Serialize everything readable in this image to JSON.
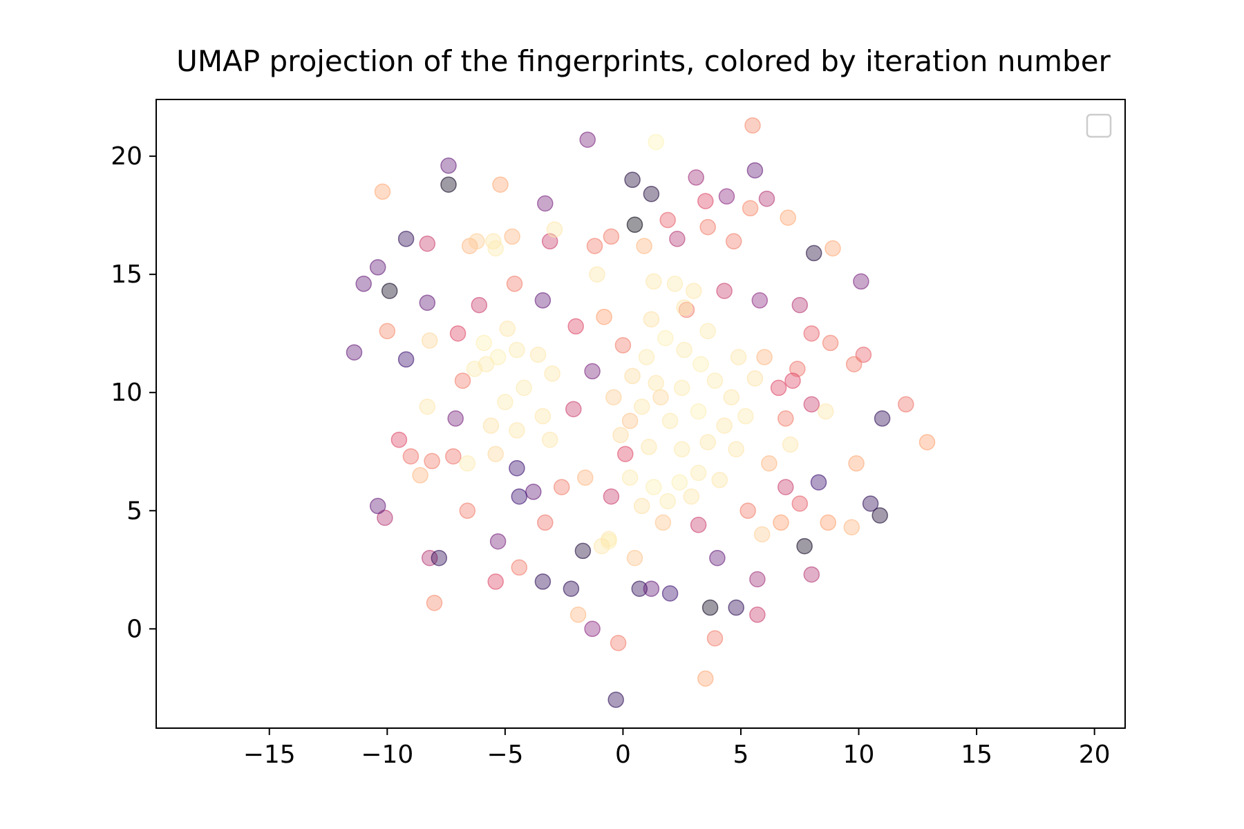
{
  "chart_data": {
    "type": "scatter",
    "title": "UMAP projection of the fingerprints, colored by iteration number",
    "xlabel": "",
    "ylabel": "",
    "xlim": [
      -19.8,
      21.3
    ],
    "ylim": [
      -4.2,
      22.4
    ],
    "xticks": [
      -15,
      -10,
      -5,
      0,
      5,
      10,
      15,
      20
    ],
    "xtick_labels": [
      "−15",
      "−10",
      "−5",
      "0",
      "5",
      "10",
      "15",
      "20"
    ],
    "yticks": [
      0,
      5,
      10,
      15,
      20
    ],
    "ytick_labels": [
      "0",
      "5",
      "10",
      "15",
      "20"
    ],
    "grid": false,
    "legend": {
      "placement": "top-right",
      "entries": []
    },
    "colormap": "magma",
    "colormap_stops": [
      "#000004",
      "#3b0f70",
      "#8c2981",
      "#de4968",
      "#fe9f6d",
      "#fcfdbf"
    ],
    "marker_alpha": 0.4,
    "points_sample": [
      {
        "x": -1.5,
        "y": 20.7,
        "c": 0.35
      },
      {
        "x": 1.4,
        "y": 20.6,
        "c": 0.98
      },
      {
        "x": 5.5,
        "y": 21.3,
        "c": 0.75
      },
      {
        "x": -7.4,
        "y": 19.6,
        "c": 0.3
      },
      {
        "x": -7.4,
        "y": 18.8,
        "c": 0.05
      },
      {
        "x": -10.2,
        "y": 18.5,
        "c": 0.82
      },
      {
        "x": -5.2,
        "y": 18.8,
        "c": 0.82
      },
      {
        "x": 0.4,
        "y": 19.0,
        "c": 0.1
      },
      {
        "x": 3.1,
        "y": 19.1,
        "c": 0.45
      },
      {
        "x": 5.6,
        "y": 19.4,
        "c": 0.3
      },
      {
        "x": 1.2,
        "y": 18.4,
        "c": 0.1
      },
      {
        "x": 6.1,
        "y": 18.2,
        "c": 0.5
      },
      {
        "x": 0.5,
        "y": 17.1,
        "c": 0.02
      },
      {
        "x": -9.2,
        "y": 16.5,
        "c": 0.15
      },
      {
        "x": -8.3,
        "y": 16.3,
        "c": 0.55
      },
      {
        "x": -10.4,
        "y": 15.3,
        "c": 0.3
      },
      {
        "x": -11.0,
        "y": 14.6,
        "c": 0.3
      },
      {
        "x": -9.9,
        "y": 14.3,
        "c": 0.05
      },
      {
        "x": -8.3,
        "y": 13.8,
        "c": 0.3
      },
      {
        "x": -11.4,
        "y": 11.7,
        "c": 0.3
      },
      {
        "x": 8.1,
        "y": 15.9,
        "c": 0.1
      },
      {
        "x": 8.9,
        "y": 16.1,
        "c": 0.82
      },
      {
        "x": 10.1,
        "y": 14.7,
        "c": 0.35
      },
      {
        "x": 7.0,
        "y": 17.4,
        "c": 0.82
      },
      {
        "x": 5.4,
        "y": 17.8,
        "c": 0.75
      },
      {
        "x": 3.5,
        "y": 18.1,
        "c": 0.6
      },
      {
        "x": 4.4,
        "y": 18.3,
        "c": 0.4
      },
      {
        "x": 10.2,
        "y": 11.6,
        "c": 0.65
      },
      {
        "x": 9.8,
        "y": 11.2,
        "c": 0.72
      },
      {
        "x": 11.0,
        "y": 8.9,
        "c": 0.15
      },
      {
        "x": 12.0,
        "y": 9.5,
        "c": 0.7
      },
      {
        "x": 12.9,
        "y": 7.9,
        "c": 0.8
      },
      {
        "x": 9.9,
        "y": 7.0,
        "c": 0.82
      },
      {
        "x": 10.9,
        "y": 4.8,
        "c": 0.08
      },
      {
        "x": 10.5,
        "y": 5.3,
        "c": 0.15
      },
      {
        "x": 9.7,
        "y": 4.3,
        "c": 0.85
      },
      {
        "x": -10.1,
        "y": 4.7,
        "c": 0.5
      },
      {
        "x": -10.4,
        "y": 5.2,
        "c": 0.3
      },
      {
        "x": -8.2,
        "y": 3.0,
        "c": 0.5
      },
      {
        "x": -7.8,
        "y": 3.0,
        "c": 0.15
      },
      {
        "x": -8.0,
        "y": 1.1,
        "c": 0.75
      },
      {
        "x": -5.4,
        "y": 2.0,
        "c": 0.6
      },
      {
        "x": -3.4,
        "y": 2.0,
        "c": 0.15
      },
      {
        "x": -2.2,
        "y": 1.7,
        "c": 0.15
      },
      {
        "x": -1.9,
        "y": 0.6,
        "c": 0.85
      },
      {
        "x": -1.3,
        "y": 0.0,
        "c": 0.4
      },
      {
        "x": -0.2,
        "y": -0.6,
        "c": 0.72
      },
      {
        "x": -0.3,
        "y": -3.0,
        "c": 0.15
      },
      {
        "x": 3.5,
        "y": -2.1,
        "c": 0.82
      },
      {
        "x": 3.9,
        "y": -0.4,
        "c": 0.72
      },
      {
        "x": 3.7,
        "y": 0.9,
        "c": 0.05
      },
      {
        "x": 4.8,
        "y": 0.9,
        "c": 0.15
      },
      {
        "x": 5.7,
        "y": 0.6,
        "c": 0.55
      },
      {
        "x": 5.7,
        "y": 2.1,
        "c": 0.45
      },
      {
        "x": 8.0,
        "y": 2.3,
        "c": 0.5
      },
      {
        "x": 2.0,
        "y": 1.5,
        "c": 0.2
      },
      {
        "x": 0.7,
        "y": 1.7,
        "c": 0.15
      },
      {
        "x": 1.2,
        "y": 1.7,
        "c": 0.3
      },
      {
        "x": 7.7,
        "y": 3.5,
        "c": 0.05
      },
      {
        "x": 8.7,
        "y": 4.5,
        "c": 0.8
      },
      {
        "x": 8.3,
        "y": 6.2,
        "c": 0.2
      },
      {
        "x": 7.5,
        "y": 5.3,
        "c": 0.65
      },
      {
        "x": -6.6,
        "y": 5.0,
        "c": 0.72
      },
      {
        "x": -5.3,
        "y": 3.7,
        "c": 0.35
      },
      {
        "x": -3.3,
        "y": 4.5,
        "c": 0.7
      },
      {
        "x": -4.4,
        "y": 2.6,
        "c": 0.72
      },
      {
        "x": -1.7,
        "y": 3.3,
        "c": 0.1
      },
      {
        "x": -0.6,
        "y": 3.8,
        "c": 0.95
      },
      {
        "x": 0.5,
        "y": 3.0,
        "c": 0.88
      },
      {
        "x": 5.9,
        "y": 4.0,
        "c": 0.9
      },
      {
        "x": -7.2,
        "y": 7.3,
        "c": 0.7
      },
      {
        "x": -8.1,
        "y": 7.1,
        "c": 0.72
      },
      {
        "x": -9.0,
        "y": 7.3,
        "c": 0.7
      },
      {
        "x": -8.6,
        "y": 6.5,
        "c": 0.85
      },
      {
        "x": -9.5,
        "y": 8.0,
        "c": 0.6
      },
      {
        "x": -8.3,
        "y": 9.4,
        "c": 0.95
      },
      {
        "x": -9.2,
        "y": 11.4,
        "c": 0.2
      },
      {
        "x": -10.0,
        "y": 12.6,
        "c": 0.75
      },
      {
        "x": -8.2,
        "y": 12.2,
        "c": 0.92
      },
      {
        "x": 8.0,
        "y": 12.5,
        "c": 0.65
      },
      {
        "x": 8.0,
        "y": 9.5,
        "c": 0.55
      },
      {
        "x": 8.6,
        "y": 9.2,
        "c": 0.95
      },
      {
        "x": 7.1,
        "y": 7.8,
        "c": 0.95
      },
      {
        "x": 6.0,
        "y": 11.5,
        "c": 0.85
      },
      {
        "x": -6.5,
        "y": 16.2,
        "c": 0.85
      },
      {
        "x": -5.5,
        "y": 16.4,
        "c": 0.95
      },
      {
        "x": -4.7,
        "y": 16.6,
        "c": 0.85
      },
      {
        "x": -3.1,
        "y": 16.4,
        "c": 0.55
      },
      {
        "x": -3.3,
        "y": 18.0,
        "c": 0.35
      },
      {
        "x": -1.2,
        "y": 16.2,
        "c": 0.72
      },
      {
        "x": -0.5,
        "y": 16.6,
        "c": 0.72
      },
      {
        "x": 0.9,
        "y": 16.2,
        "c": 0.85
      },
      {
        "x": 1.9,
        "y": 17.3,
        "c": 0.65
      },
      {
        "x": 2.3,
        "y": 16.5,
        "c": 0.5
      },
      {
        "x": 3.6,
        "y": 17.0,
        "c": 0.72
      },
      {
        "x": 4.7,
        "y": 16.4,
        "c": 0.72
      },
      {
        "x": -2.9,
        "y": 16.9,
        "c": 0.95
      },
      {
        "x": -1.1,
        "y": 15.0,
        "c": 0.95
      },
      {
        "x": 1.3,
        "y": 14.7,
        "c": 0.95
      },
      {
        "x": 5.8,
        "y": 13.9,
        "c": 0.4
      },
      {
        "x": 7.5,
        "y": 13.7,
        "c": 0.5
      },
      {
        "x": 8.8,
        "y": 12.1,
        "c": 0.72
      },
      {
        "x": -4.5,
        "y": 6.8,
        "c": 0.2
      },
      {
        "x": -3.8,
        "y": 5.8,
        "c": 0.3
      },
      {
        "x": -4.4,
        "y": 5.6,
        "c": 0.2
      },
      {
        "x": -2.6,
        "y": 6.0,
        "c": 0.72
      },
      {
        "x": -1.6,
        "y": 6.4,
        "c": 0.85
      },
      {
        "x": 0.1,
        "y": 7.4,
        "c": 0.6
      },
      {
        "x": -2.1,
        "y": 9.3,
        "c": 0.55
      },
      {
        "x": -1.3,
        "y": 10.9,
        "c": 0.35
      },
      {
        "x": -2.0,
        "y": 12.8,
        "c": 0.6
      },
      {
        "x": -0.8,
        "y": 13.2,
        "c": 0.8
      },
      {
        "x": -3.4,
        "y": 13.9,
        "c": 0.3
      },
      {
        "x": -4.6,
        "y": 14.6,
        "c": 0.72
      },
      {
        "x": -6.1,
        "y": 13.7,
        "c": 0.55
      },
      {
        "x": -7.0,
        "y": 12.5,
        "c": 0.6
      },
      {
        "x": -6.8,
        "y": 10.5,
        "c": 0.72
      },
      {
        "x": -7.1,
        "y": 8.9,
        "c": 0.35
      },
      {
        "x": 0.3,
        "y": 8.8,
        "c": 0.88
      },
      {
        "x": 1.6,
        "y": 9.8,
        "c": 0.92
      },
      {
        "x": 0.0,
        "y": 12.0,
        "c": 0.72
      },
      {
        "x": 2.7,
        "y": 13.5,
        "c": 0.72
      },
      {
        "x": 4.3,
        "y": 14.3,
        "c": 0.55
      },
      {
        "x": 6.6,
        "y": 10.2,
        "c": 0.6
      },
      {
        "x": 6.9,
        "y": 8.9,
        "c": 0.72
      },
      {
        "x": 6.2,
        "y": 7.0,
        "c": 0.85
      },
      {
        "x": 5.3,
        "y": 5.0,
        "c": 0.72
      },
      {
        "x": 3.2,
        "y": 4.4,
        "c": 0.55
      },
      {
        "x": 1.7,
        "y": 4.5,
        "c": 0.88
      },
      {
        "x": -0.5,
        "y": 5.6,
        "c": 0.55
      },
      {
        "x": 4.0,
        "y": 3.0,
        "c": 0.3
      },
      {
        "x": 6.7,
        "y": 4.5,
        "c": 0.8
      },
      {
        "x": 6.9,
        "y": 6.0,
        "c": 0.55
      },
      {
        "x": 7.4,
        "y": 11.0,
        "c": 0.7
      },
      {
        "x": 7.2,
        "y": 10.5,
        "c": 0.6
      },
      {
        "x": -5.8,
        "y": 11.2,
        "c": 0.96
      },
      {
        "x": -5.3,
        "y": 11.5,
        "c": 0.97
      },
      {
        "x": -6.3,
        "y": 11.0,
        "c": 0.96
      },
      {
        "x": -4.5,
        "y": 11.8,
        "c": 0.96
      },
      {
        "x": -3.6,
        "y": 11.6,
        "c": 0.95
      },
      {
        "x": -3.0,
        "y": 10.8,
        "c": 0.95
      },
      {
        "x": -4.2,
        "y": 10.2,
        "c": 0.96
      },
      {
        "x": -5.0,
        "y": 9.6,
        "c": 0.96
      },
      {
        "x": -3.4,
        "y": 9.0,
        "c": 0.95
      },
      {
        "x": -4.5,
        "y": 8.4,
        "c": 0.95
      },
      {
        "x": -5.6,
        "y": 8.6,
        "c": 0.94
      },
      {
        "x": -3.1,
        "y": 8.0,
        "c": 0.95
      },
      {
        "x": -5.9,
        "y": 12.1,
        "c": 0.97
      },
      {
        "x": -4.9,
        "y": 12.7,
        "c": 0.95
      },
      {
        "x": -5.4,
        "y": 7.4,
        "c": 0.92
      },
      {
        "x": 1.0,
        "y": 11.5,
        "c": 0.96
      },
      {
        "x": 1.8,
        "y": 12.3,
        "c": 0.97
      },
      {
        "x": 2.6,
        "y": 11.8,
        "c": 0.96
      },
      {
        "x": 3.3,
        "y": 11.2,
        "c": 0.97
      },
      {
        "x": 3.9,
        "y": 10.5,
        "c": 0.96
      },
      {
        "x": 4.6,
        "y": 9.8,
        "c": 0.95
      },
      {
        "x": 2.5,
        "y": 10.2,
        "c": 0.96
      },
      {
        "x": 1.4,
        "y": 10.4,
        "c": 0.95
      },
      {
        "x": 0.8,
        "y": 9.4,
        "c": 0.95
      },
      {
        "x": 2.0,
        "y": 8.8,
        "c": 0.96
      },
      {
        "x": 3.2,
        "y": 9.2,
        "c": 0.97
      },
      {
        "x": 4.3,
        "y": 8.6,
        "c": 0.95
      },
      {
        "x": 5.2,
        "y": 9.0,
        "c": 0.96
      },
      {
        "x": 5.6,
        "y": 10.6,
        "c": 0.94
      },
      {
        "x": 4.9,
        "y": 11.5,
        "c": 0.95
      },
      {
        "x": 3.6,
        "y": 12.6,
        "c": 0.96
      },
      {
        "x": 2.6,
        "y": 13.6,
        "c": 0.95
      },
      {
        "x": 2.2,
        "y": 14.6,
        "c": 0.96
      },
      {
        "x": 3.0,
        "y": 14.3,
        "c": 0.95
      },
      {
        "x": 1.2,
        "y": 13.1,
        "c": 0.94
      },
      {
        "x": 0.4,
        "y": 10.7,
        "c": 0.93
      },
      {
        "x": -0.4,
        "y": 9.8,
        "c": 0.9
      },
      {
        "x": -0.1,
        "y": 8.2,
        "c": 0.93
      },
      {
        "x": 1.1,
        "y": 7.7,
        "c": 0.95
      },
      {
        "x": 2.5,
        "y": 7.6,
        "c": 0.96
      },
      {
        "x": 3.6,
        "y": 7.9,
        "c": 0.95
      },
      {
        "x": 4.8,
        "y": 7.6,
        "c": 0.95
      },
      {
        "x": 0.3,
        "y": 6.4,
        "c": 0.96
      },
      {
        "x": 1.3,
        "y": 6.0,
        "c": 0.97
      },
      {
        "x": 2.4,
        "y": 6.2,
        "c": 0.97
      },
      {
        "x": 3.2,
        "y": 6.6,
        "c": 0.96
      },
      {
        "x": 4.1,
        "y": 6.3,
        "c": 0.95
      },
      {
        "x": 1.9,
        "y": 5.4,
        "c": 0.96
      },
      {
        "x": 2.9,
        "y": 5.6,
        "c": 0.95
      },
      {
        "x": 0.8,
        "y": 5.2,
        "c": 0.94
      },
      {
        "x": -0.6,
        "y": 3.7,
        "c": 0.97
      },
      {
        "x": -0.9,
        "y": 3.5,
        "c": 0.95
      },
      {
        "x": -6.2,
        "y": 16.4,
        "c": 0.9
      },
      {
        "x": -5.4,
        "y": 16.1,
        "c": 0.96
      },
      {
        "x": -6.6,
        "y": 7.0,
        "c": 0.96
      }
    ]
  }
}
